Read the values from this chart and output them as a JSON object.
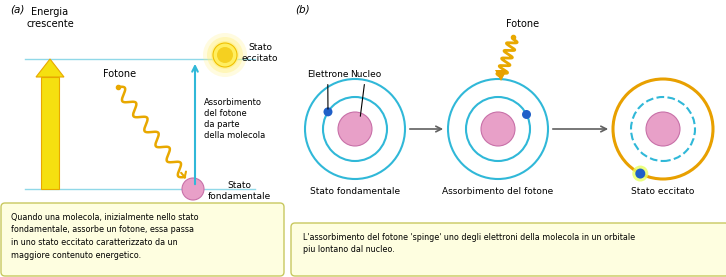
{
  "bg_color": "#ffffff",
  "panel_a": {
    "label": "(a)",
    "energy_label": "Energia\ncrescente",
    "stato_eccitato_label": "Stato\neccitato",
    "stato_fondamentale_label": "Stato\nfondamentale",
    "fotone_label": "Fotone",
    "assorbimento_label": "Assorbimento\ndel fotone\nda parte\ndella molecola",
    "box_text": "Quando una molecola, inizialmente nello stato\nfondamentale, assorbe un fotone, essa passa\nin uno stato eccitato caratterizzato da un\nmaggiore contenuto energetico.",
    "arrow_color": "#f5e010",
    "arrow_edge_color": "#e8a800",
    "cyan_arrow_color": "#30b8d8",
    "photon_color": "#e8a800",
    "sun_color": "#f5d020",
    "sun_inner_color": "#ffee60",
    "molecule_color": "#e8a0c8",
    "molecule_edge": "#c870a8",
    "line_color": "#90d8e8",
    "box_bg": "#fefee0",
    "box_border": "#c8c860",
    "text_color": "#404040"
  },
  "panel_b": {
    "label": "(b)",
    "fotone_label": "Fotone",
    "elettrone_label": "Elettrone",
    "nucleo_label": "Nucleo",
    "stato_fond_label": "Stato fondamentale",
    "assorbimento_label": "Assorbimento del fotone",
    "stato_ecc_label": "Stato eccitato",
    "orbit_color": "#30b8d8",
    "orbit_color_excited": "#e8a000",
    "nucleus_color": "#e8a0c8",
    "nucleus_edge": "#c870a8",
    "electron_color": "#2060c8",
    "electron_glow": "#e8ff60",
    "photon_color": "#e8a800",
    "photon_tip_color": "#e8a000",
    "box_text": "L'assorbimento del fotone 'spinge' uno degli elettroni della molecola in un orbitale\npiu lontano dal nucleo.",
    "box_bg": "#fefee0",
    "box_border": "#c8c860",
    "text_color": "#404040"
  }
}
